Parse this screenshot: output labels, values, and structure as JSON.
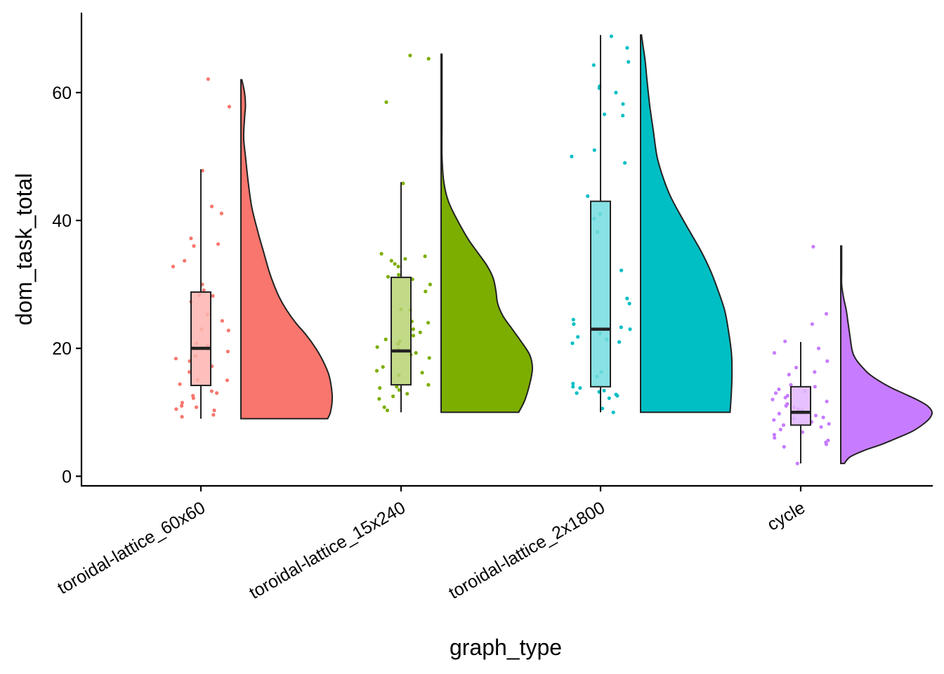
{
  "chart_data": {
    "type": "raincloud",
    "xlabel": "graph_type",
    "ylabel": "dom_task_total",
    "ylim": [
      -1.5,
      72.5
    ],
    "yticks": [
      0,
      20,
      40,
      60
    ],
    "grid": false,
    "legend": "none",
    "categories": [
      "toroidal-lattice_60x60",
      "toroidal-lattice_15x240",
      "toroidal-lattice_2x1800",
      "cycle"
    ],
    "groups": [
      {
        "category": "toroidal-lattice_60x60",
        "color": "#F8766D",
        "box": {
          "min": 9,
          "q1": 14.2,
          "median": 20,
          "q3": 28.8,
          "max": 48
        },
        "violin_range": [
          9,
          62
        ],
        "density": [
          [
            9,
            0.95
          ],
          [
            10,
            0.98
          ],
          [
            12,
            1.0
          ],
          [
            14,
            0.99
          ],
          [
            16,
            0.96
          ],
          [
            18,
            0.9
          ],
          [
            20,
            0.82
          ],
          [
            22,
            0.72
          ],
          [
            24,
            0.6
          ],
          [
            26,
            0.5
          ],
          [
            28,
            0.42
          ],
          [
            30,
            0.36
          ],
          [
            32,
            0.31
          ],
          [
            35,
            0.25
          ],
          [
            38,
            0.19
          ],
          [
            42,
            0.12
          ],
          [
            46,
            0.08
          ],
          [
            50,
            0.05
          ],
          [
            53,
            0.03
          ],
          [
            56,
            0.04
          ],
          [
            58,
            0.05
          ],
          [
            60,
            0.04
          ],
          [
            62,
            0.01
          ]
        ],
        "points": [
          62.1,
          57.8,
          47.8,
          42.2,
          41.1,
          37.2,
          36.0,
          36.3,
          33.7,
          32.8,
          30.0,
          29.1,
          28.3,
          28.2,
          27.3,
          25.3,
          24.3,
          23.0,
          22.8,
          20.8,
          20.4,
          20.1,
          20.0,
          19.5,
          18.8,
          18.4,
          18.0,
          17.2,
          16.3,
          15.1,
          15.0,
          14.4,
          13.3,
          13.0,
          12.6,
          12.2,
          11.5,
          11.0,
          10.8,
          10.5,
          10.3,
          9.6,
          9.3
        ]
      },
      {
        "category": "toroidal-lattice_15x240",
        "color": "#7CAE00",
        "box": {
          "min": 10,
          "q1": 14.3,
          "median": 19.6,
          "q3": 31.1,
          "max": 46
        },
        "violin_range": [
          10,
          66
        ],
        "density": [
          [
            10,
            0.85
          ],
          [
            12,
            0.92
          ],
          [
            15,
            0.98
          ],
          [
            17,
            1.0
          ],
          [
            19,
            0.97
          ],
          [
            21,
            0.88
          ],
          [
            23,
            0.78
          ],
          [
            25,
            0.68
          ],
          [
            27,
            0.62
          ],
          [
            29,
            0.6
          ],
          [
            31,
            0.57
          ],
          [
            33,
            0.5
          ],
          [
            35,
            0.4
          ],
          [
            37,
            0.3
          ],
          [
            40,
            0.18
          ],
          [
            43,
            0.08
          ],
          [
            46,
            0.03
          ],
          [
            50,
            0.01
          ],
          [
            55,
            0.01
          ],
          [
            60,
            0.01
          ],
          [
            66,
            0.01
          ]
        ],
        "points": [
          65.8,
          65.3,
          58.5,
          45.8,
          34.8,
          34.4,
          34.0,
          33.7,
          33.2,
          32.8,
          31.5,
          31.2,
          30.8,
          30.0,
          28.9,
          26.1,
          26.0,
          24.2,
          24.0,
          23.0,
          22.5,
          22.0,
          21.4,
          21.1,
          20.7,
          20.2,
          19.8,
          19.3,
          19.0,
          18.5,
          17.1,
          16.5,
          16.2,
          15.8,
          14.3,
          14.0,
          13.8,
          13.5,
          12.9,
          12.5,
          12.1,
          10.8,
          10.3
        ]
      },
      {
        "category": "toroidal-lattice_2x1800",
        "color": "#00BFC4",
        "box": {
          "min": 10,
          "q1": 14,
          "median": 23,
          "q3": 43,
          "max": 69
        },
        "violin_range": [
          10,
          69
        ],
        "density": [
          [
            10,
            0.98
          ],
          [
            12,
            0.99
          ],
          [
            15,
            1.0
          ],
          [
            18,
            1.0
          ],
          [
            20,
            0.99
          ],
          [
            23,
            0.96
          ],
          [
            26,
            0.92
          ],
          [
            29,
            0.85
          ],
          [
            32,
            0.77
          ],
          [
            35,
            0.67
          ],
          [
            38,
            0.55
          ],
          [
            41,
            0.43
          ],
          [
            44,
            0.32
          ],
          [
            47,
            0.24
          ],
          [
            50,
            0.18
          ],
          [
            54,
            0.14
          ],
          [
            58,
            0.1
          ],
          [
            62,
            0.07
          ],
          [
            65,
            0.05
          ],
          [
            67,
            0.03
          ],
          [
            69,
            0.01
          ]
        ],
        "points": [
          68.8,
          67.0,
          64.8,
          64.3,
          61.0,
          60.7,
          60.0,
          58.2,
          56.6,
          56.4,
          51.0,
          50.0,
          49.0,
          43.8,
          41.0,
          40.3,
          38.2,
          32.2,
          27.8,
          27.0,
          24.5,
          23.8,
          23.3,
          23.0,
          22.3,
          21.8,
          21.4,
          21.0,
          20.8,
          16.3,
          15.6,
          14.5,
          14.0,
          13.8,
          13.4,
          13.2,
          13.0,
          12.8,
          12.6,
          12.2,
          10.6,
          10.0
        ]
      },
      {
        "category": "cycle",
        "color": "#C77CFF",
        "box": {
          "min": 2,
          "q1": 8,
          "median": 10,
          "q3": 14,
          "max": 21
        },
        "violin_range": [
          2,
          36
        ],
        "density": [
          [
            2,
            0.04
          ],
          [
            3,
            0.1
          ],
          [
            4,
            0.25
          ],
          [
            5,
            0.45
          ],
          [
            6,
            0.62
          ],
          [
            7,
            0.78
          ],
          [
            8,
            0.89
          ],
          [
            9,
            0.97
          ],
          [
            10,
            1.0
          ],
          [
            11,
            0.95
          ],
          [
            12,
            0.83
          ],
          [
            13,
            0.68
          ],
          [
            14,
            0.53
          ],
          [
            15,
            0.41
          ],
          [
            16,
            0.31
          ],
          [
            17,
            0.24
          ],
          [
            18,
            0.18
          ],
          [
            19,
            0.14
          ],
          [
            20,
            0.12
          ],
          [
            22,
            0.1
          ],
          [
            24,
            0.08
          ],
          [
            26,
            0.06
          ],
          [
            28,
            0.03
          ],
          [
            30,
            0.01
          ],
          [
            32,
            0.01
          ],
          [
            34,
            0.01
          ],
          [
            36,
            0.01
          ]
        ],
        "points": [
          35.9,
          25.4,
          23.8,
          21.1,
          20.0,
          19.3,
          18.0,
          17.0,
          16.3,
          15.9,
          14.3,
          14.0,
          13.6,
          13.3,
          13.0,
          12.6,
          12.3,
          12.0,
          11.7,
          11.3,
          11.0,
          10.8,
          10.5,
          10.3,
          10.0,
          9.8,
          9.5,
          9.2,
          9.0,
          8.8,
          8.5,
          8.2,
          8.0,
          7.7,
          7.3,
          6.9,
          6.5,
          6.0,
          5.6,
          5.3,
          5.0,
          4.6,
          2.0
        ]
      }
    ]
  }
}
